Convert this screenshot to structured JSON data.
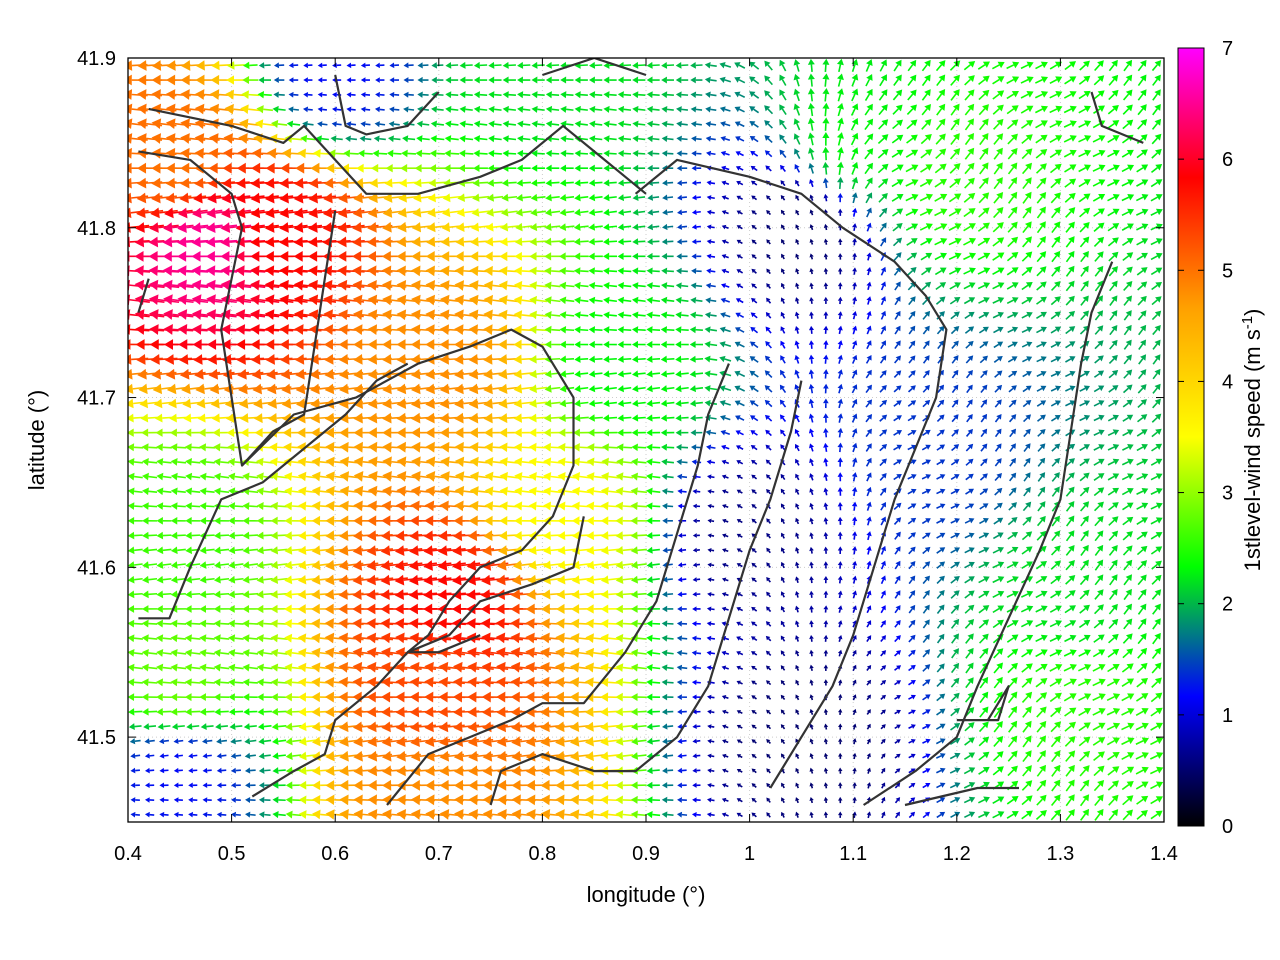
{
  "chart_data": {
    "type": "vector-field",
    "xlabel": "longitude (°)",
    "ylabel": "latitude (°)",
    "colorbar_label": "1stlevel-wind speed (m s",
    "colorbar_label_sup": "-1",
    "colorbar_label_end": ")",
    "xlim": [
      0.4,
      1.4
    ],
    "ylim": [
      41.45,
      41.9
    ],
    "x_ticks": [
      "0.4",
      "0.5",
      "0.6",
      "0.7",
      "0.8",
      "0.9",
      "1",
      "1.1",
      "1.2",
      "1.3",
      "1.4"
    ],
    "y_ticks": [
      "41.5",
      "41.6",
      "41.7",
      "41.8",
      "41.9"
    ],
    "colorbar_range": [
      0,
      7
    ],
    "colorbar_ticks": [
      "0",
      "1",
      "2",
      "3",
      "4",
      "5",
      "6",
      "7"
    ],
    "colormap": [
      "#000000",
      "#0000ff",
      "#00ff00",
      "#ffff00",
      "#ffa000",
      "#ff0000",
      "#ff00ff"
    ],
    "grid": true,
    "wind_regions": [
      {
        "lon": 0.48,
        "lat": 41.79,
        "speed": 6.5
      },
      {
        "lon": 0.55,
        "lat": 41.8,
        "speed": 5.8
      },
      {
        "lon": 0.45,
        "lat": 41.84,
        "speed": 5.0
      },
      {
        "lon": 0.7,
        "lat": 41.72,
        "speed": 4.8
      },
      {
        "lon": 0.72,
        "lat": 41.58,
        "speed": 5.8
      },
      {
        "lon": 0.7,
        "lat": 41.53,
        "speed": 5.3
      },
      {
        "lon": 0.7,
        "lat": 41.46,
        "speed": 4.8
      },
      {
        "lon": 0.82,
        "lat": 41.63,
        "speed": 3.5
      },
      {
        "lon": 0.45,
        "lat": 41.62,
        "speed": 2.6
      },
      {
        "lon": 0.45,
        "lat": 41.53,
        "speed": 2.8
      },
      {
        "lon": 0.88,
        "lat": 41.72,
        "speed": 2.3
      },
      {
        "lon": 1.0,
        "lat": 41.62,
        "speed": 0.6
      },
      {
        "lon": 1.05,
        "lat": 41.8,
        "speed": 0.5
      },
      {
        "lon": 1.1,
        "lat": 41.85,
        "speed": 2.3
      },
      {
        "lon": 1.2,
        "lat": 41.83,
        "speed": 2.5
      },
      {
        "lon": 1.17,
        "lat": 41.67,
        "speed": 1.4
      },
      {
        "lon": 1.32,
        "lat": 41.58,
        "speed": 2.2
      },
      {
        "lon": 1.32,
        "lat": 41.52,
        "speed": 2.5
      },
      {
        "lon": 1.05,
        "lat": 41.5,
        "speed": 0.5
      },
      {
        "lon": 0.8,
        "lat": 41.89,
        "speed": 2.2
      },
      {
        "lon": 0.6,
        "lat": 41.89,
        "speed": 1.2
      },
      {
        "lon": 0.45,
        "lat": 41.48,
        "speed": 1.2
      }
    ]
  }
}
